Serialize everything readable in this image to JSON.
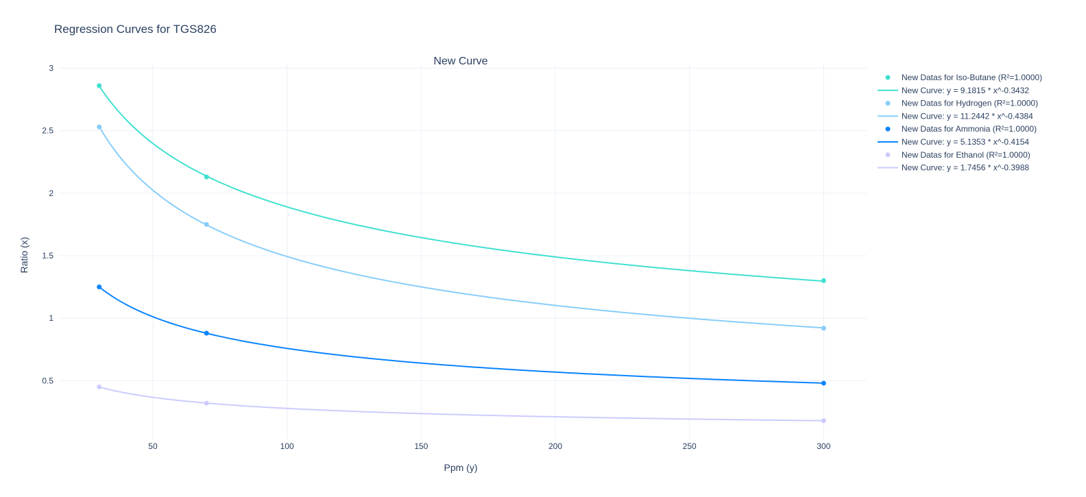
{
  "page_title": "Regression Curves for TGS826",
  "chart_data": {
    "type": "line",
    "title": "New Curve",
    "xlabel": "Ppm (y)",
    "ylabel": "Ratio (x)",
    "xlim": [
      15,
      316
    ],
    "ylim": [
      0.03,
      3.03
    ],
    "xticks": [
      50,
      100,
      150,
      200,
      250,
      300
    ],
    "yticks": [
      0.5,
      1,
      1.5,
      2,
      2.5,
      3
    ],
    "xtick_labels": [
      "50",
      "100",
      "150",
      "200",
      "250",
      "300"
    ],
    "ytick_labels": [
      "0.5",
      "1",
      "1.5",
      "2",
      "2.5",
      "3"
    ],
    "grid": true,
    "legend_position": "top-right, outside plot",
    "series": [
      {
        "name": "New Datas for Iso-Butane (R²=1.0000)",
        "mode": "markers",
        "color": "#40e0d0",
        "x": [
          30,
          70,
          300
        ],
        "y": [
          2.86,
          2.13,
          1.3
        ]
      },
      {
        "name": "New Curve: y = 9.1815 * x^-0.3432",
        "mode": "line",
        "color": "#40e0d0",
        "coef": 9.1815,
        "exp": -0.3432,
        "x_range": [
          30,
          300
        ]
      },
      {
        "name": "New Datas for Hydrogen (R²=1.0000)",
        "mode": "markers",
        "color": "#87cefa",
        "x": [
          30,
          70,
          300
        ],
        "y": [
          2.53,
          1.75,
          0.92
        ]
      },
      {
        "name": "New Curve: y = 11.2442 * x^-0.4384",
        "mode": "line",
        "color": "#87cefa",
        "coef": 11.2442,
        "exp": -0.4384,
        "x_range": [
          30,
          300
        ]
      },
      {
        "name": "New Datas for Ammonia (R²=1.0000)",
        "mode": "markers",
        "color": "#0a84ff",
        "x": [
          30,
          70,
          300
        ],
        "y": [
          1.25,
          0.88,
          0.48
        ]
      },
      {
        "name": "New Curve: y = 5.1353 * x^-0.4154",
        "mode": "line",
        "color": "#0a84ff",
        "coef": 5.1353,
        "exp": -0.4154,
        "x_range": [
          30,
          300
        ]
      },
      {
        "name": "New Datas for Ethanol (R²=1.0000)",
        "mode": "markers",
        "color": "#ccccff",
        "x": [
          30,
          70,
          300
        ],
        "y": [
          0.45,
          0.32,
          0.18
        ]
      },
      {
        "name": "New Curve: y = 1.7456 * x^-0.3988",
        "mode": "line",
        "color": "#ccccff",
        "coef": 1.7456,
        "exp": -0.3988,
        "x_range": [
          30,
          300
        ]
      }
    ]
  }
}
